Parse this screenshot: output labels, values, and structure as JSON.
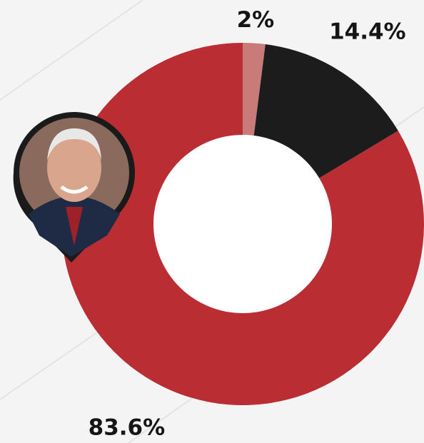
{
  "chart_data": {
    "type": "donut",
    "values": [
      2,
      14.4,
      83.6
    ],
    "value_labels": [
      "2%",
      "14.4%",
      "83.6%"
    ],
    "colors": [
      "#c97b79",
      "#1c1c1c",
      "#b92d33"
    ]
  }
}
